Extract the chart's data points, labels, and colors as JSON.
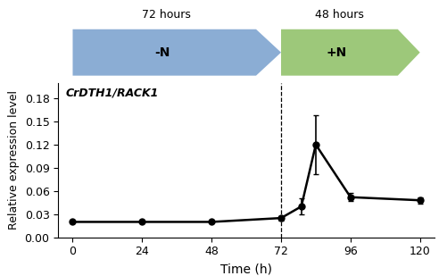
{
  "x": [
    0,
    24,
    48,
    72,
    79,
    84,
    96,
    120
  ],
  "y": [
    0.02,
    0.02,
    0.02,
    0.025,
    0.04,
    0.12,
    0.052,
    0.048
  ],
  "yerr": [
    0.0,
    0.0,
    0.0,
    0.003,
    0.01,
    0.038,
    0.005,
    0.004
  ],
  "xlim": [
    -5,
    125
  ],
  "ylim": [
    0,
    0.2
  ],
  "yticks": [
    0,
    0.03,
    0.06,
    0.09,
    0.12,
    0.15,
    0.18
  ],
  "xticks": [
    0,
    24,
    48,
    72,
    96,
    120
  ],
  "xlabel": "Time (h)",
  "ylabel": "Relative expression level",
  "vline_x": 72,
  "label_text": "CrDTH1/RACK1",
  "arrow1_label_top": "72 hours",
  "arrow1_label_bot": "-N",
  "arrow1_color": "#8BADD4",
  "arrow2_label_top": "48 hours",
  "arrow2_label_bot": "+N",
  "arrow2_color": "#9DC87A",
  "line_color": "#000000",
  "marker": "o",
  "markersize": 5,
  "linewidth": 1.8
}
